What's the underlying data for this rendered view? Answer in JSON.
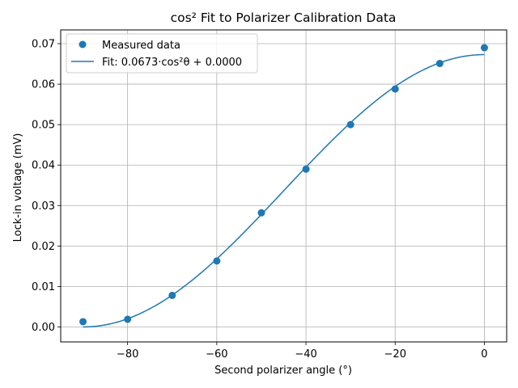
{
  "chart_data": {
    "type": "scatter",
    "title": "cos² Fit to Polarizer Calibration Data",
    "xlabel": "Second polarizer angle (°)",
    "ylabel": "Lock-in voltage (mV)",
    "xlim": [
      -95,
      5
    ],
    "ylim": [
      -0.0037,
      0.0734
    ],
    "xticks": [
      -80,
      -60,
      -40,
      -20,
      0
    ],
    "xtick_labels": [
      "−80",
      "−60",
      "−40",
      "−20",
      "0"
    ],
    "yticks": [
      0.0,
      0.01,
      0.02,
      0.03,
      0.04,
      0.05,
      0.06,
      0.07
    ],
    "ytick_labels": [
      "0.00",
      "0.01",
      "0.02",
      "0.03",
      "0.04",
      "0.05",
      "0.06",
      "0.07"
    ],
    "grid": true,
    "legend_position": "top-left",
    "series": [
      {
        "name": "Measured data",
        "kind": "scatter",
        "color": "#1f77b4",
        "x": [
          -90,
          -80,
          -70,
          -60,
          -50,
          -40,
          -30,
          -20,
          -10,
          0
        ],
        "y": [
          0.0013,
          0.0019,
          0.0078,
          0.0163,
          0.0282,
          0.039,
          0.05,
          0.0588,
          0.0651,
          0.069
        ]
      },
      {
        "name": "Fit: 0.0673·cos²θ + 0.0000",
        "kind": "line",
        "color": "#1f77b4",
        "amplitude": 0.0673,
        "offset": 0.0,
        "x_range": [
          -90,
          0
        ]
      }
    ]
  }
}
